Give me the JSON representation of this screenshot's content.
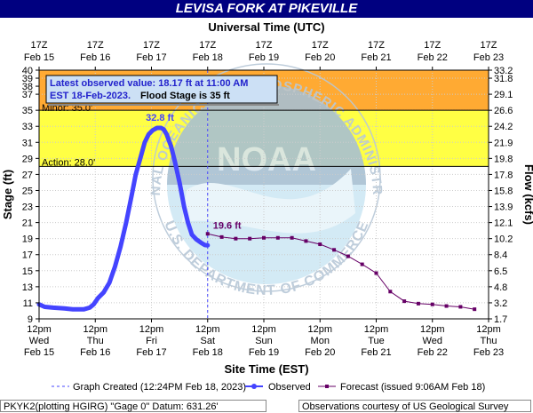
{
  "header": {
    "title": "LEVISA FORK AT PIKEVILLE",
    "top_axis_title": "Universal Time (UTC)"
  },
  "chart_data": {
    "type": "line",
    "title": "LEVISA FORK AT PIKEVILLE",
    "xlabel": "Site Time (EST)",
    "ylabel_left": "Stage (ft)",
    "ylabel_right": "Flow (kcfs)",
    "x_top_label": "Universal Time (UTC)",
    "ylim": [
      9,
      40
    ],
    "x_range": [
      "2023-02-15 12:00",
      "2023-02-23 12:00"
    ],
    "y_ticks_left": [
      9,
      11,
      13,
      15,
      17,
      19,
      21,
      23,
      25,
      27,
      29,
      31,
      33,
      35,
      37,
      38,
      39,
      40
    ],
    "y_ticks_right": [
      {
        "stage": 9,
        "label": "1.7"
      },
      {
        "stage": 11,
        "label": "3.2"
      },
      {
        "stage": 13,
        "label": "4.8"
      },
      {
        "stage": 15,
        "label": "6.5"
      },
      {
        "stage": 17,
        "label": "8.4"
      },
      {
        "stage": 19,
        "label": "10.2"
      },
      {
        "stage": 21,
        "label": "12.1"
      },
      {
        "stage": 23,
        "label": "13.9"
      },
      {
        "stage": 25,
        "label": "15.8"
      },
      {
        "stage": 27,
        "label": "17.8"
      },
      {
        "stage": 29,
        "label": "19.8"
      },
      {
        "stage": 31,
        "label": "21.9"
      },
      {
        "stage": 33,
        "label": "24.2"
      },
      {
        "stage": 35,
        "label": "26.6"
      },
      {
        "stage": 37,
        "label": "29.1"
      },
      {
        "stage": 39,
        "label": "31.8"
      },
      {
        "stage": 40,
        "label": "33.2"
      }
    ],
    "x_ticks_bottom": [
      {
        "t": 0,
        "line1": "12pm",
        "line2": "Wed",
        "line3": "Feb 15"
      },
      {
        "t": 1,
        "line1": "12pm",
        "line2": "Thu",
        "line3": "Feb 16"
      },
      {
        "t": 2,
        "line1": "12pm",
        "line2": "Fri",
        "line3": "Feb 17"
      },
      {
        "t": 3,
        "line1": "12pm",
        "line2": "Sat",
        "line3": "Feb 18"
      },
      {
        "t": 4,
        "line1": "12pm",
        "line2": "Sun",
        "line3": "Feb 19"
      },
      {
        "t": 5,
        "line1": "12pm",
        "line2": "Mon",
        "line3": "Feb 20"
      },
      {
        "t": 6,
        "line1": "12pm",
        "line2": "Tue",
        "line3": "Feb 21"
      },
      {
        "t": 7,
        "line1": "12pm",
        "line2": "Wed",
        "line3": "Feb 22"
      },
      {
        "t": 8,
        "line1": "12pm",
        "line2": "Thu",
        "line3": "Feb 23"
      }
    ],
    "x_ticks_top": [
      {
        "t": 0,
        "line1": "17Z",
        "line2": "Feb 15"
      },
      {
        "t": 1,
        "line1": "17Z",
        "line2": "Feb 16"
      },
      {
        "t": 2,
        "line1": "17Z",
        "line2": "Feb 17"
      },
      {
        "t": 3,
        "line1": "17Z",
        "line2": "Feb 18"
      },
      {
        "t": 4,
        "line1": "17Z",
        "line2": "Feb 19"
      },
      {
        "t": 5,
        "line1": "17Z",
        "line2": "Feb 20"
      },
      {
        "t": 6,
        "line1": "17Z",
        "line2": "Feb 21"
      },
      {
        "t": 7,
        "line1": "17Z",
        "line2": "Feb 22"
      },
      {
        "t": 8,
        "line1": "17Z",
        "line2": "Feb 23"
      }
    ],
    "flood_categories": [
      {
        "label": "Action: 28.0'",
        "stage": 28.0,
        "color": "#ffff44"
      },
      {
        "label": "Minor: 35.0'",
        "stage": 35.0,
        "color": "#ffaa33"
      }
    ],
    "series": [
      {
        "name": "Observed",
        "color": "#4444ff",
        "x": [
          0,
          0.1,
          0.25,
          0.45,
          0.6,
          0.7,
          0.8,
          0.9,
          0.97,
          1.05,
          1.15,
          1.25,
          1.35,
          1.45,
          1.55,
          1.65,
          1.72,
          1.8,
          1.88,
          1.95,
          2.02,
          2.1,
          2.17,
          2.22,
          2.27,
          2.35,
          2.42,
          2.5,
          2.58,
          2.65,
          2.72,
          2.8,
          2.88,
          2.95,
          3.0
        ],
        "y": [
          10.8,
          10.5,
          10.4,
          10.3,
          10.2,
          10.2,
          10.2,
          10.4,
          10.8,
          11.6,
          12.3,
          13.5,
          15.5,
          18.0,
          21.0,
          24.5,
          27.0,
          29.0,
          31.0,
          32.0,
          32.5,
          32.8,
          32.8,
          32.6,
          32.0,
          30.5,
          28.5,
          26.0,
          23.0,
          21.0,
          19.5,
          18.9,
          18.5,
          18.2,
          18.17
        ]
      },
      {
        "name": "Forecast (issued 9:06AM Feb 18)",
        "color": "#660066",
        "x": [
          3.0,
          3.25,
          3.5,
          3.75,
          4.0,
          4.25,
          4.5,
          4.75,
          5.0,
          5.25,
          5.5,
          5.75,
          6.0,
          6.25,
          6.5,
          6.75,
          7.0,
          7.25,
          7.5,
          7.75
        ],
        "y": [
          19.6,
          19.2,
          19.0,
          19.0,
          19.1,
          19.1,
          19.1,
          18.7,
          18.3,
          17.6,
          16.8,
          15.8,
          14.7,
          12.4,
          11.2,
          10.9,
          10.8,
          10.6,
          10.5,
          10.2
        ]
      }
    ],
    "annotations": {
      "peak_label": "32.8 ft",
      "peak_x": 2.15,
      "peak_y": 32.8,
      "forecast_label": "19.6 ft",
      "forecast_x": 3.0,
      "forecast_y": 19.6,
      "observed_box_line1": "Latest observed value: 18.17 ft at 11:00 AM",
      "observed_box_line2": "EST 18-Feb-2023.",
      "observed_box_line2b": "Flood Stage is 35 ft",
      "graph_created_x": 3.0
    },
    "legend": {
      "graph_created": "Graph Created (12:24PM Feb 18, 2023)",
      "observed": "Observed",
      "forecast": "Forecast (issued 9:06AM Feb 18)"
    },
    "watermark": {
      "arc_top": "NATIONAL OCEANIC AND ATMOSPHERIC ADMINISTRATION",
      "arc_bottom": "U.S. DEPARTMENT OF COMMERCE",
      "center": "NOAA"
    }
  },
  "footer": {
    "left": "PKYK2(plotting HGIRG) \"Gage 0\" Datum: 631.26'",
    "right": "Observations courtesy of US Geological Survey"
  }
}
